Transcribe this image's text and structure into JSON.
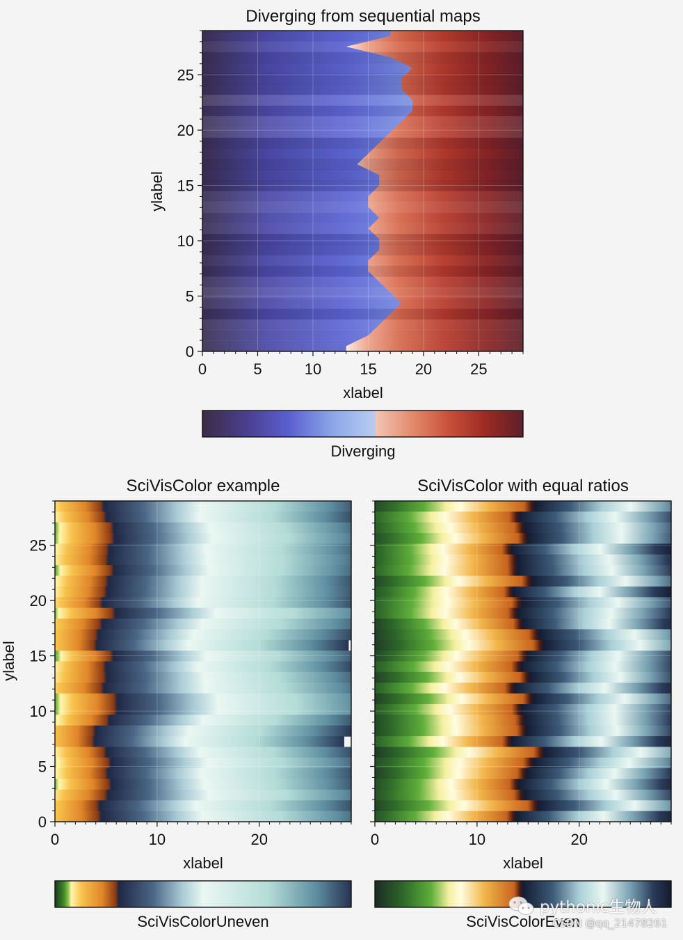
{
  "watermark": {
    "text": "pythonic生物人",
    "subtext": "CSDN @qq_21478261"
  },
  "chart_data": [
    {
      "type": "contour",
      "title": "Diverging from sequential maps",
      "xlabel": "xlabel",
      "ylabel": "ylabel",
      "xlim": [
        0,
        29
      ],
      "ylim": [
        0,
        29
      ],
      "xticks": [
        "0",
        "5",
        "10",
        "15",
        "20",
        "25"
      ],
      "yticks": [
        "0",
        "5",
        "10",
        "15",
        "20",
        "25"
      ],
      "grid": true,
      "colormap_name": "Diverging",
      "colormap_stops": [
        "#3b2c44",
        "#4a3f8e",
        "#5a5fd0",
        "#8aa6e8",
        "#b9cdf2",
        "#f1c6b4",
        "#e38a6d",
        "#c8503a",
        "#9a2a22",
        "#5e1f2a"
      ],
      "colorbar_split": 0.54,
      "boundary_x_by_row": [
        13,
        15,
        16,
        17,
        18,
        17,
        16,
        15,
        15,
        16,
        16,
        15,
        16,
        15,
        15,
        16,
        16,
        14,
        15,
        16,
        17,
        18,
        19,
        19,
        18,
        18,
        19,
        17,
        13,
        17
      ]
    },
    {
      "type": "contour",
      "title": "SciVisColor example",
      "xlabel": "xlabel",
      "ylabel": "ylabel",
      "xlim": [
        0,
        29
      ],
      "ylim": [
        0,
        29
      ],
      "xticks": [
        "0",
        "10",
        "20"
      ],
      "yticks": [
        "0",
        "5",
        "10",
        "15",
        "20",
        "25"
      ],
      "grid": true,
      "colormap_name": "SciVisColorUneven",
      "colormap_stops": [
        "#1c3a1c",
        "#3f8a2a",
        "#8cc04a",
        "#fff6b0",
        "#f7c24c",
        "#e0852a",
        "#8a3a14",
        "#1f2844",
        "#4a6585",
        "#a9cbd6",
        "#eaf7f2",
        "#b4dcd8",
        "#5f8fa0",
        "#263352"
      ],
      "colormap_stop_positions": [
        0,
        0.03,
        0.045,
        0.055,
        0.09,
        0.16,
        0.205,
        0.215,
        0.33,
        0.43,
        0.5,
        0.72,
        0.88,
        1
      ]
    },
    {
      "type": "contour",
      "title": "SciVisColor with equal ratios",
      "xlabel": "xlabel",
      "ylabel": "",
      "xlim": [
        0,
        29
      ],
      "ylim": [
        0,
        29
      ],
      "xticks": [
        "0",
        "10",
        "20"
      ],
      "yticks": [],
      "grid": true,
      "colormap_name": "SciVisColorEven",
      "colormap_stops": [
        "#1b2b24",
        "#2f6b2a",
        "#5fae3a",
        "#f5f0a0",
        "#fffce0",
        "#f2b54a",
        "#c8641e",
        "#4a1a10",
        "#141c33",
        "#3c5a78",
        "#aad0d8",
        "#eaf7f2",
        "#7aa4b4",
        "#2a3a5a",
        "#141c2e"
      ],
      "colormap_stop_positions": [
        0,
        0.1,
        0.19,
        0.25,
        0.29,
        0.37,
        0.47,
        0.49,
        0.5,
        0.6,
        0.69,
        0.77,
        0.86,
        0.94,
        1
      ]
    }
  ]
}
